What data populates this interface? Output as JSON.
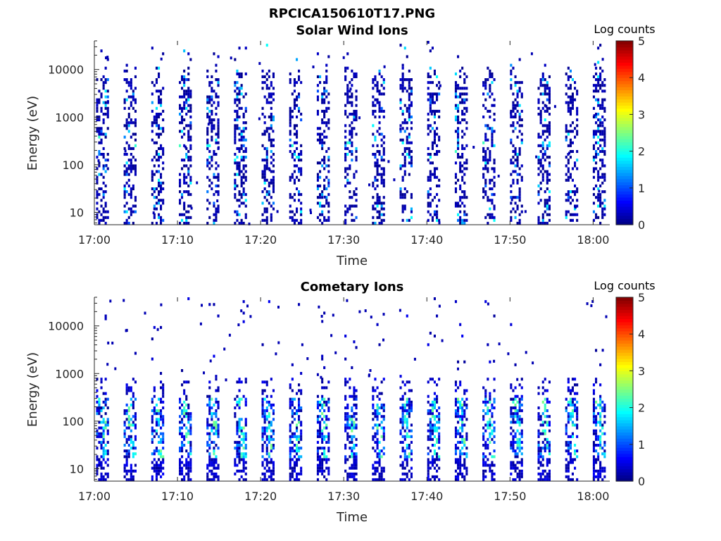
{
  "figure_title": "RPCICA150610T17.PNG",
  "chart_data": [
    {
      "type": "heatmap",
      "title": "Solar Wind Ions",
      "xlabel": "Time",
      "ylabel": "Energy (eV)",
      "x_ticks": [
        "17:00",
        "17:10",
        "17:20",
        "17:30",
        "17:40",
        "17:50",
        "18:00"
      ],
      "x_range_minutes": [
        0,
        62
      ],
      "y_ticks": [
        "10",
        "100",
        "1000",
        "10000"
      ],
      "y_scale": "log",
      "y_range": [
        5.5,
        40000
      ],
      "colorbar": {
        "label": "Log counts",
        "ticks": [
          "0",
          "1",
          "2",
          "3",
          "4",
          "5"
        ],
        "range": [
          0,
          5
        ],
        "colormap": "jet"
      },
      "description_of_data": "Periodic vertical bursts roughly every 3.3 minutes spanning ~10 eV to ~20000 eV, mostly low counts (0-1), occasional values up to ~2 near 100-500 eV."
    },
    {
      "type": "heatmap",
      "title": "Cometary Ions",
      "xlabel": "Time",
      "ylabel": "Energy (eV)",
      "x_ticks": [
        "17:00",
        "17:10",
        "17:20",
        "17:30",
        "17:40",
        "17:50",
        "18:00"
      ],
      "x_range_minutes": [
        0,
        62
      ],
      "y_ticks": [
        "10",
        "100",
        "1000",
        "10000"
      ],
      "y_scale": "log",
      "y_range": [
        5.5,
        40000
      ],
      "colorbar": {
        "label": "Log counts",
        "ticks": [
          "0",
          "1",
          "2",
          "3",
          "4",
          "5"
        ],
        "range": [
          0,
          5
        ],
        "colormap": "jet"
      },
      "description_of_data": "Periodic bursts roughly every 3.3 minutes concentrated between ~8 eV and ~800 eV, with higher counts (up to ~2.5) near 30-300 eV; sparse single counts above 1000 eV."
    }
  ]
}
